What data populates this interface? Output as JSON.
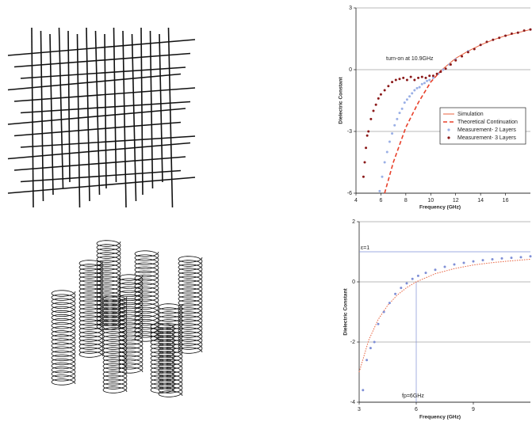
{
  "chart_data": [
    {
      "type": "line",
      "xlabel": "Frequency (GHz)",
      "ylabel": "Dielectric Constant",
      "annotation": "turn-on at 10.9GHz",
      "xlim": [
        4,
        18
      ],
      "xticks": [
        4,
        6,
        8,
        10,
        12,
        14,
        16
      ],
      "ylim": [
        -6,
        3
      ],
      "yticks": [
        -6,
        -3,
        0,
        3
      ],
      "grid": true,
      "legend": "lower right",
      "series": [
        {
          "name": "Simulation",
          "color": "#e8603c",
          "style": "solid",
          "x": [
            10.9,
            12,
            13,
            14,
            15,
            16,
            17,
            18
          ],
          "values": [
            0,
            0.55,
            0.9,
            1.2,
            1.45,
            1.65,
            1.8,
            1.95
          ]
        },
        {
          "name": "Theoretical Continuation",
          "color": "#e8402a",
          "style": "dashed",
          "x": [
            6.3,
            7,
            8,
            9,
            10,
            10.9
          ],
          "values": [
            -6,
            -4.5,
            -2.8,
            -1.6,
            -0.6,
            0
          ]
        },
        {
          "name": "Measurement- 2 Layers",
          "color": "#9bb0e6",
          "style": "markers",
          "x": [
            5.9,
            6.1,
            6.3,
            6.5,
            6.7,
            6.9,
            7.1,
            7.3,
            7.5,
            7.7,
            7.9,
            8.1,
            8.3,
            8.5,
            8.7,
            8.9,
            9.1,
            9.3,
            9.5,
            9.7,
            9.9,
            10.2,
            10.6,
            11,
            11.5,
            12,
            13,
            14,
            15,
            16,
            17,
            18
          ],
          "values": [
            -5.9,
            -5.2,
            -4.5,
            -4.0,
            -3.5,
            -3.1,
            -2.7,
            -2.4,
            -2.1,
            -1.9,
            -1.6,
            -1.45,
            -1.3,
            -1.15,
            -1.0,
            -0.9,
            -0.85,
            -0.7,
            -0.65,
            -0.55,
            -0.5,
            -0.4,
            -0.2,
            0.0,
            0.25,
            0.5,
            0.9,
            1.2,
            1.45,
            1.65,
            1.8,
            1.95
          ]
        },
        {
          "name": "Measurement- 3 Layers",
          "color": "#8b1a1a",
          "style": "markers",
          "x": [
            4.6,
            4.7,
            4.8,
            4.9,
            5.0,
            5.2,
            5.4,
            5.6,
            5.8,
            6.0,
            6.3,
            6.6,
            6.9,
            7.2,
            7.5,
            7.8,
            8.1,
            8.4,
            8.7,
            9.0,
            9.3,
            9.6,
            9.9,
            10.2,
            10.5,
            10.8,
            11.2,
            11.6,
            12,
            12.5,
            13,
            13.5,
            14,
            14.5,
            15,
            15.5,
            16,
            16.5,
            17,
            17.5,
            18
          ],
          "values": [
            -5.2,
            -4.5,
            -3.8,
            -3.2,
            -3.0,
            -2.4,
            -2.0,
            -1.7,
            -1.4,
            -1.2,
            -1.0,
            -0.8,
            -0.6,
            -0.5,
            -0.45,
            -0.4,
            -0.5,
            -0.35,
            -0.5,
            -0.4,
            -0.35,
            -0.4,
            -0.3,
            -0.3,
            -0.2,
            -0.1,
            0.05,
            0.25,
            0.45,
            0.65,
            0.85,
            1.0,
            1.2,
            1.35,
            1.45,
            1.55,
            1.65,
            1.75,
            1.8,
            1.9,
            1.95
          ]
        }
      ]
    },
    {
      "type": "line",
      "xlabel": "Frequency (GHz)",
      "ylabel": "Dielectric Constant",
      "xlim": [
        3,
        12
      ],
      "xticks": [
        3,
        6,
        9
      ],
      "ylim": [
        -4,
        2
      ],
      "yticks": [
        -4,
        -2,
        0,
        2
      ],
      "grid": true,
      "reference_lines": [
        {
          "axis": "y",
          "value": 1,
          "label": "ε=1"
        },
        {
          "axis": "x",
          "value": 6,
          "label": "fp=6GHz"
        }
      ],
      "series": [
        {
          "color": "#e8603c",
          "style": "dotted",
          "x": [
            3,
            3.5,
            4,
            4.5,
            5,
            5.5,
            6,
            7,
            8,
            9,
            10,
            11,
            12
          ],
          "values": [
            -3,
            -1.94,
            -1.25,
            -0.78,
            -0.44,
            -0.19,
            0,
            0.27,
            0.44,
            0.56,
            0.64,
            0.7,
            0.75
          ]
        },
        {
          "color": "#7f8fd6",
          "style": "markers",
          "x": [
            3.2,
            3.4,
            3.6,
            3.8,
            4,
            4.3,
            4.6,
            4.9,
            5.2,
            5.5,
            5.8,
            6.1,
            6.5,
            7,
            7.5,
            8,
            8.5,
            9,
            9.5,
            10,
            10.5,
            11,
            11.5,
            12
          ],
          "values": [
            -3.6,
            -2.6,
            -2.2,
            -2.0,
            -1.4,
            -1.0,
            -0.7,
            -0.4,
            -0.2,
            -0.05,
            0.1,
            0.2,
            0.3,
            0.4,
            0.5,
            0.58,
            0.63,
            0.68,
            0.72,
            0.75,
            0.78,
            0.8,
            0.82,
            0.85
          ]
        }
      ]
    }
  ]
}
